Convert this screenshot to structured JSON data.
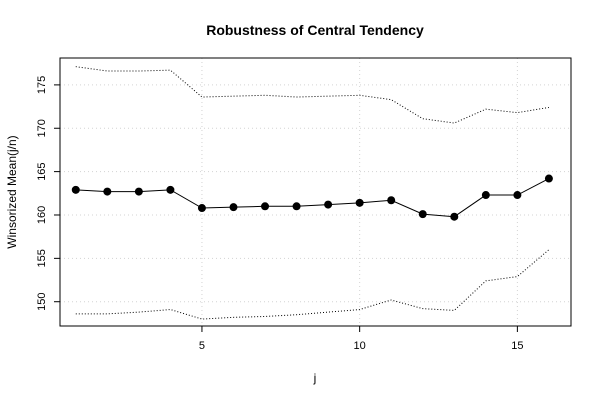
{
  "chart_data": {
    "type": "line",
    "title": "Robustness of Central Tendency",
    "xlabel": "j",
    "ylabel": "Winsorized Mean(j/n)",
    "xlim": [
      0.5,
      16.7
    ],
    "ylim": [
      147.2,
      178.1
    ],
    "xticks": [
      5,
      10,
      15
    ],
    "yticks": [
      150,
      155,
      160,
      165,
      170,
      175
    ],
    "grid": true,
    "x": [
      1,
      2,
      3,
      4,
      5,
      6,
      7,
      8,
      9,
      10,
      11,
      12,
      13,
      14,
      15,
      16
    ],
    "series": [
      {
        "role": "mean",
        "style": "solid-points",
        "values": [
          162.9,
          162.7,
          162.7,
          162.9,
          160.8,
          160.9,
          161.0,
          161.0,
          161.2,
          161.4,
          161.7,
          160.1,
          159.8,
          162.3,
          162.3,
          164.2
        ]
      },
      {
        "role": "upper",
        "style": "dotted",
        "values": [
          177.1,
          176.6,
          176.6,
          176.7,
          173.6,
          173.7,
          173.8,
          173.6,
          173.7,
          173.8,
          173.3,
          171.1,
          170.6,
          172.2,
          171.8,
          172.4
        ]
      },
      {
        "role": "lower",
        "style": "dotted",
        "values": [
          148.6,
          148.6,
          148.8,
          149.1,
          148.0,
          148.2,
          148.3,
          148.5,
          148.8,
          149.1,
          150.2,
          149.2,
          149.0,
          152.4,
          152.9,
          156.0
        ]
      }
    ]
  }
}
